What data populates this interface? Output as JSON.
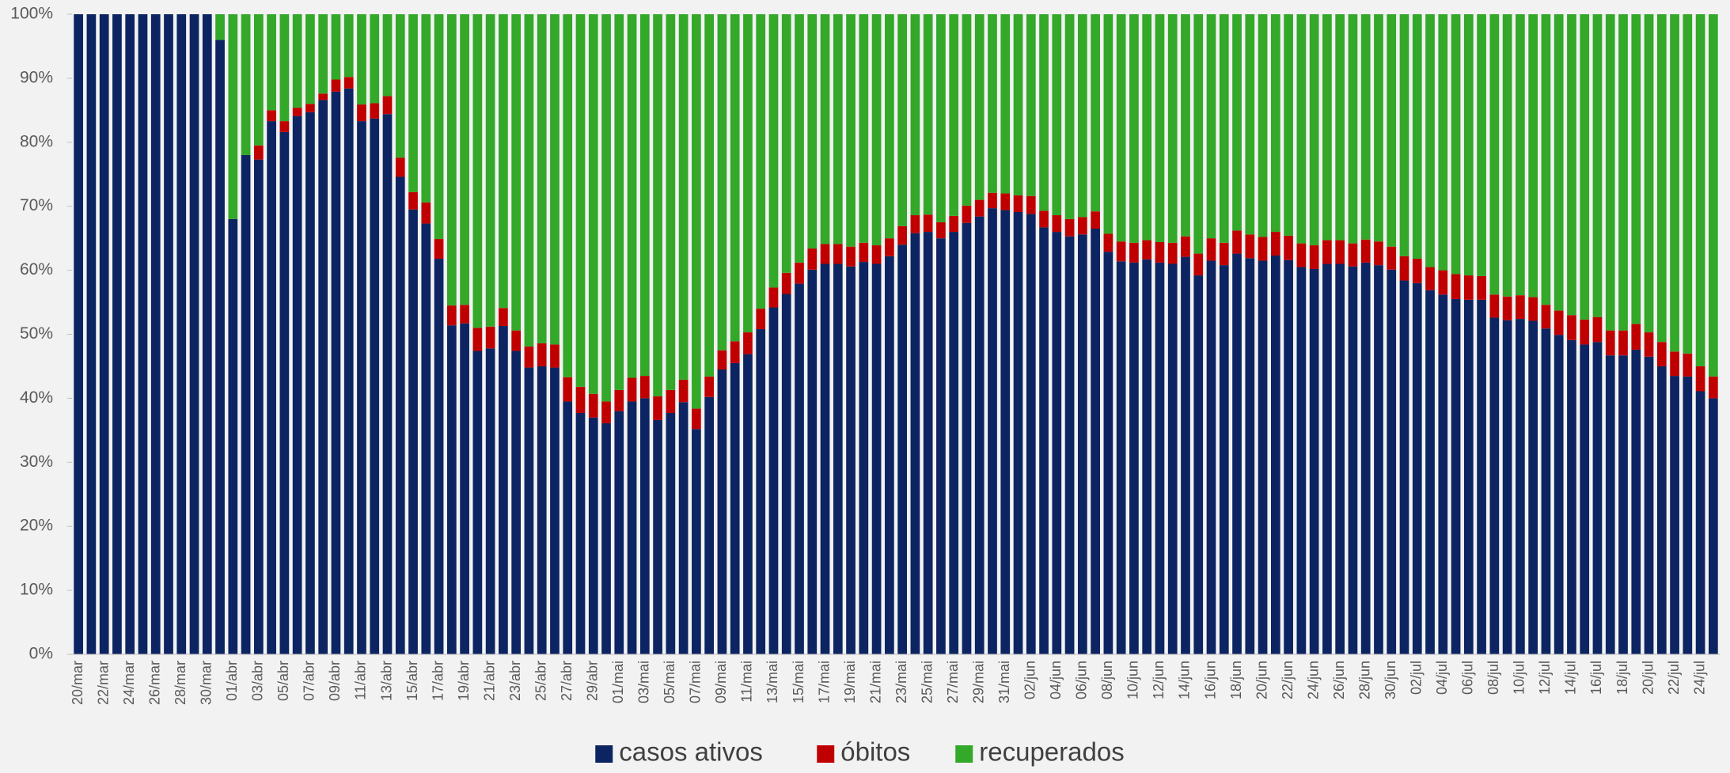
{
  "chart_data": {
    "type": "stacked_bar_100",
    "categories": [
      "20/mar",
      null,
      "22/mar",
      null,
      "24/mar",
      null,
      "26/mar",
      null,
      "28/mar",
      null,
      "30/mar",
      null,
      "01/abr",
      null,
      "03/abr",
      null,
      "05/abr",
      null,
      "07/abr",
      null,
      "09/abr",
      null,
      "11/abr",
      null,
      "13/abr",
      null,
      "15/abr",
      null,
      "17/abr",
      null,
      "19/abr",
      null,
      "21/abr",
      null,
      "23/abr",
      null,
      "25/abr",
      null,
      "27/abr",
      null,
      "29/abr",
      null,
      "01/mai",
      null,
      "03/mai",
      null,
      "05/mai",
      null,
      "07/mai",
      null,
      "09/mai",
      null,
      "11/mai",
      null,
      "13/mai",
      null,
      "15/mai",
      null,
      "17/mai",
      null,
      "19/mai",
      null,
      "21/mai",
      null,
      "23/mai",
      null,
      "25/mai",
      null,
      "27/mai",
      null,
      "29/mai",
      null,
      "31/mai",
      null,
      "02/jun",
      null,
      "04/jun",
      null,
      "06/jun",
      null,
      "08/jun",
      null,
      "10/jun",
      null,
      "12/jun",
      null,
      "14/jun",
      null,
      "16/jun",
      null,
      "18/jun",
      null,
      "20/jun",
      null,
      "22/jun",
      null,
      "24/jun",
      null,
      "26/jun",
      null,
      "28/jun",
      null,
      "30/jun",
      null,
      "02/jul",
      null,
      "04/jul",
      null,
      "06/jul",
      null,
      "08/jul",
      null,
      "10/jul",
      null,
      "12/jul",
      null,
      "14/jul",
      null,
      "16/jul",
      null,
      "18/jul",
      null,
      "20/jul",
      null,
      "22/jul",
      null,
      "24/jul",
      null
    ],
    "series": [
      {
        "name": "casos ativos",
        "color": "#0c2461",
        "values": [
          100,
          100,
          100,
          100,
          100,
          100,
          100,
          100,
          100,
          100,
          100,
          96,
          68,
          78,
          77.3,
          83.3,
          81.6,
          84.1,
          84.7,
          86.6,
          87.9,
          88.4,
          83.3,
          83.7,
          84.4,
          74.6,
          69.5,
          67.3,
          61.8,
          51.4,
          51.7,
          47.4,
          47.8,
          51.3,
          47.4,
          44.8,
          45.0,
          44.8,
          39.5,
          37.7,
          37.0,
          36.1,
          38.0,
          39.5,
          40.0,
          36.6,
          37.7,
          39.4,
          35.2,
          40.2,
          44.5,
          45.5,
          46.9,
          50.8,
          54.2,
          56.3,
          57.9,
          60.1,
          61.0,
          61.0,
          60.6,
          61.3,
          61.0,
          62.2,
          64.0,
          65.8,
          66.0,
          65.0,
          66.0,
          67.4,
          68.4,
          69.7,
          69.4,
          69.1,
          68.8,
          66.7,
          66.0,
          65.3,
          65.6,
          66.5,
          62.9,
          61.4,
          61.2,
          61.7,
          61.2,
          61.0,
          62.1,
          59.2,
          61.5,
          60.8,
          62.6,
          61.9,
          61.5,
          62.3,
          61.6,
          60.5,
          60.2,
          61.0,
          61.0,
          60.6,
          61.2,
          60.8,
          60.1,
          58.4,
          58.0,
          56.9,
          56.2,
          55.5,
          55.4,
          55.4,
          52.6,
          52.2,
          52.4,
          52.1,
          50.9,
          49.9,
          49.1,
          48.4,
          48.8,
          46.7,
          46.7,
          47.6,
          46.5,
          45.0,
          43.5,
          43.4,
          41.1,
          40.0
        ]
      },
      {
        "name": "óbitos",
        "color": "#c00000",
        "values": [
          0,
          0,
          0,
          0,
          0,
          0,
          0,
          0,
          0,
          0,
          0,
          0,
          0,
          0,
          2.2,
          1.7,
          1.7,
          1.3,
          1.3,
          1.0,
          1.9,
          1.8,
          2.6,
          2.4,
          2.8,
          3.0,
          2.7,
          3.3,
          3.1,
          3.1,
          2.9,
          3.6,
          3.4,
          2.8,
          3.2,
          3.3,
          3.6,
          3.6,
          3.8,
          4.1,
          3.7,
          3.4,
          3.3,
          3.7,
          3.5,
          3.7,
          3.6,
          3.5,
          3.2,
          3.2,
          3.0,
          3.4,
          3.4,
          3.2,
          3.1,
          3.3,
          3.3,
          3.3,
          3.1,
          3.1,
          3.1,
          3.0,
          2.9,
          2.8,
          2.9,
          2.8,
          2.7,
          2.5,
          2.5,
          2.7,
          2.6,
          2.4,
          2.6,
          2.6,
          2.8,
          2.6,
          2.6,
          2.7,
          2.7,
          2.7,
          2.8,
          3.1,
          3.1,
          3.0,
          3.2,
          3.3,
          3.2,
          3.4,
          3.5,
          3.5,
          3.6,
          3.7,
          3.7,
          3.7,
          3.8,
          3.7,
          3.7,
          3.7,
          3.7,
          3.6,
          3.6,
          3.7,
          3.6,
          3.8,
          3.8,
          3.6,
          3.8,
          3.9,
          3.8,
          3.7,
          3.6,
          3.7,
          3.7,
          3.7,
          3.7,
          3.8,
          3.9,
          3.9,
          3.9,
          3.9,
          3.9,
          4.0,
          3.8,
          3.8,
          3.8,
          3.6,
          3.9,
          3.4
        ]
      },
      {
        "name": "recuperados",
        "color": "#33a829",
        "values": [
          0,
          0,
          0,
          0,
          0,
          0,
          0,
          0,
          0,
          0,
          0,
          4,
          32,
          22,
          20.5,
          15,
          16.7,
          14.6,
          14,
          12.4,
          10.2,
          9.8,
          14.1,
          13.9,
          12.8,
          22.4,
          27.8,
          29.4,
          35.1,
          45.5,
          45.4,
          49,
          48.8,
          45.9,
          49.4,
          51.9,
          51.4,
          51.6,
          56.7,
          58.2,
          59.3,
          60.5,
          58.7,
          56.8,
          56.5,
          59.7,
          58.7,
          57.1,
          61.6,
          56.6,
          52.5,
          51.1,
          49.7,
          46,
          42.7,
          40.4,
          38.8,
          36.6,
          35.9,
          35.9,
          36.3,
          35.7,
          36.1,
          35,
          33.1,
          31.4,
          31.3,
          32.5,
          31.5,
          29.9,
          29,
          27.9,
          28,
          28.3,
          28.4,
          30.7,
          31.4,
          32,
          31.7,
          30.8,
          34.3,
          35.5,
          35.7,
          35.3,
          35.6,
          35.7,
          34.7,
          37.4,
          35,
          35.7,
          33.8,
          34.4,
          34.8,
          34,
          34.6,
          35.8,
          36.1,
          35.3,
          35.3,
          35.8,
          35.2,
          35.5,
          36.3,
          37.8,
          38.2,
          39.5,
          40,
          40.6,
          40.8,
          40.9,
          43.8,
          44.1,
          43.9,
          44.2,
          45.4,
          46.3,
          47,
          47.7,
          47.3,
          49.4,
          49.4,
          48.4,
          49.7,
          51.2,
          52.7,
          53,
          55,
          56.6
        ]
      }
    ],
    "ylim": [
      0,
      100
    ],
    "yticks": [
      {
        "value": 0,
        "label": "0%"
      },
      {
        "value": 10,
        "label": "10%"
      },
      {
        "value": 20,
        "label": "20%"
      },
      {
        "value": 30,
        "label": "30%"
      },
      {
        "value": 40,
        "label": "40%"
      },
      {
        "value": 50,
        "label": "50%"
      },
      {
        "value": 60,
        "label": "60%"
      },
      {
        "value": 70,
        "label": "70%"
      },
      {
        "value": 80,
        "label": "80%"
      },
      {
        "value": 90,
        "label": "90%"
      },
      {
        "value": 100,
        "label": "100%"
      }
    ],
    "legend": "bottom"
  }
}
